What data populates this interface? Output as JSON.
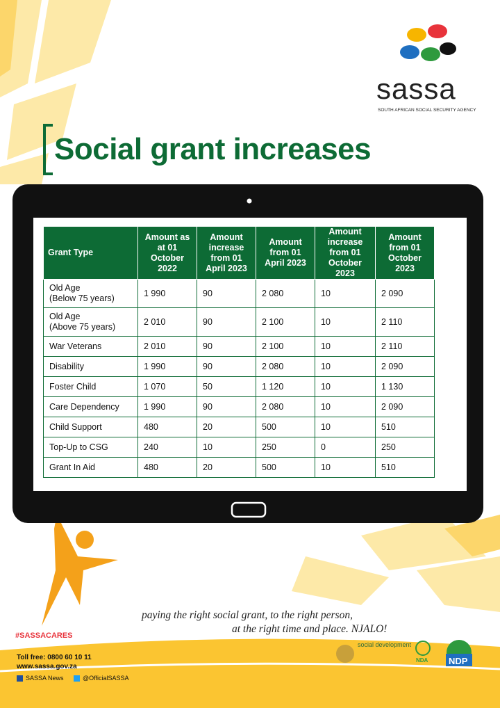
{
  "logo": {
    "name": "sassa",
    "tagline": "SOUTH AFRICAN SOCIAL SECURITY AGENCY"
  },
  "title": "Social grant increases",
  "table": {
    "headers": [
      "Grant Type",
      "Amount as at 01 October 2022",
      "Amount increase from 01 April 2023",
      "Amount from 01 April 2023",
      "Amount increase from 01 October 2023",
      "Amount from 01 October 2023"
    ],
    "rows": [
      [
        "Old Age\n(Below 75 years)",
        "1 990",
        "90",
        "2 080",
        "10",
        "2 090"
      ],
      [
        "Old Age\n(Above 75 years)",
        "2 010",
        "90",
        "2 100",
        "10",
        "2 110"
      ],
      [
        "War Veterans",
        "2 010",
        "90",
        "2 100",
        "10",
        "2 110"
      ],
      [
        "Disability",
        "1 990",
        "90",
        "2 080",
        "10",
        "2 090"
      ],
      [
        "Foster Child",
        "1 070",
        "50",
        "1 120",
        "10",
        "1 130"
      ],
      [
        "Care Dependency",
        "1 990",
        "90",
        "2 080",
        "10",
        "2 090"
      ],
      [
        "Child Support",
        "480",
        "20",
        "500",
        "10",
        "510"
      ],
      [
        "Top-Up to CSG",
        "240",
        "10",
        "250",
        "0",
        "250"
      ],
      [
        "Grant In Aid",
        "480",
        "20",
        "500",
        "10",
        "510"
      ]
    ]
  },
  "slogan": [
    "paying the right social grant, to the right person,",
    "at the right time and place. NJALO!"
  ],
  "hashtag": "#SASSACARES",
  "contact": {
    "toll_free": "Toll free: 0800 60 10 11",
    "website": "www.sassa.gov.za",
    "facebook": "SASSA News",
    "twitter": "@OfficialSASSA"
  },
  "partners": {
    "department": "social development",
    "nda": "NDA",
    "ndp": "NDP"
  }
}
